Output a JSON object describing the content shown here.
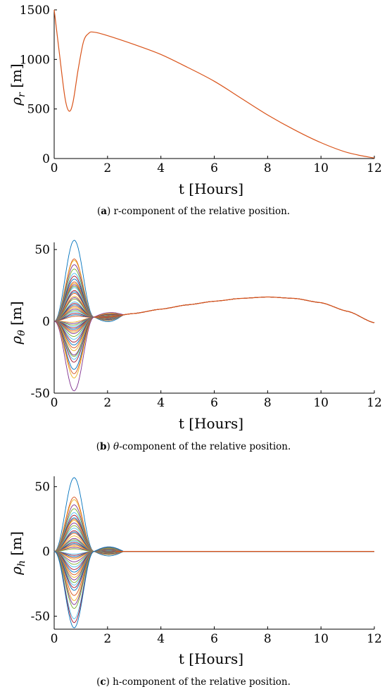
{
  "chart_data": [
    {
      "type": "line",
      "xlabel": "t [Hours]",
      "ylabel_symbol": "ρ",
      "ylabel_sub": "r",
      "ylabel_unit": "[m]",
      "xlim": [
        0,
        12
      ],
      "ylim": [
        0,
        1500
      ],
      "xticks": [
        "0",
        "2",
        "4",
        "6",
        "8",
        "10",
        "12"
      ],
      "yticks": [
        "0",
        "500",
        "1000",
        "1500"
      ],
      "series": [
        {
          "color": "#D95319",
          "x": [
            0,
            0.2,
            0.4,
            0.55,
            0.7,
            0.9,
            1.1,
            1.3,
            1.5,
            2,
            3,
            4,
            5,
            6,
            7,
            8,
            9,
            10,
            11,
            12
          ],
          "y": [
            1500,
            1050,
            620,
            480,
            560,
            900,
            1180,
            1265,
            1275,
            1240,
            1150,
            1050,
            920,
            780,
            610,
            440,
            290,
            160,
            60,
            5
          ]
        }
      ],
      "caption_label": "a",
      "caption_text": " r-component of the relative position."
    },
    {
      "type": "line",
      "xlabel": "t [Hours]",
      "ylabel_symbol": "ρ",
      "ylabel_sub": "θ",
      "ylabel_unit": "[m]",
      "xlim": [
        0,
        12
      ],
      "ylim": [
        -50,
        55
      ],
      "xticks": [
        "0",
        "2",
        "4",
        "6",
        "8",
        "10",
        "12"
      ],
      "yticks": [
        "-50",
        "0",
        "50"
      ],
      "bump_amplitudes": [
        55,
        42,
        41,
        38,
        35,
        32,
        30,
        28,
        26,
        25,
        24,
        23,
        22,
        20,
        19,
        18,
        16,
        15,
        14,
        12,
        11,
        10,
        9,
        8,
        7,
        6,
        5,
        4,
        3,
        2,
        -2,
        -3,
        -4,
        -5,
        -6,
        -7,
        -8,
        -9,
        -10,
        -12,
        -14,
        -16,
        -18,
        -20,
        -22,
        -25,
        -26,
        -28,
        -30,
        -35,
        -38,
        -41,
        -50
      ],
      "common_tail": {
        "x": [
          1.5,
          2,
          3,
          4,
          5,
          6,
          7,
          8,
          9,
          10,
          11,
          12
        ],
        "y": [
          3,
          3,
          5.5,
          8.5,
          11.5,
          14,
          16,
          17,
          16,
          13,
          7,
          -1
        ]
      },
      "colors": [
        "#0072BD",
        "#D95319",
        "#EDB120",
        "#7E2F8E",
        "#77AC30",
        "#4DBEEE",
        "#A2142F"
      ],
      "caption_label": "b",
      "caption_text": " θ-component of the relative position."
    },
    {
      "type": "line",
      "xlabel": "t [Hours]",
      "ylabel_symbol": "ρ",
      "ylabel_sub": "h",
      "ylabel_unit": "[m]",
      "xlim": [
        0,
        12
      ],
      "ylim": [
        -60,
        58
      ],
      "xticks": [
        "0",
        "2",
        "4",
        "6",
        "8",
        "10",
        "12"
      ],
      "yticks": [
        "-50",
        "0",
        "50"
      ],
      "bump_amplitudes": [
        57,
        42,
        40,
        36,
        33,
        30,
        28,
        26,
        25,
        24,
        22,
        20,
        18,
        16,
        15,
        14,
        12,
        10,
        9,
        8,
        7,
        6,
        5,
        4,
        3,
        2,
        -2,
        -3,
        -4,
        -5,
        -6,
        -8,
        -10,
        -12,
        -14,
        -16,
        -18,
        -20,
        -22,
        -24,
        -26,
        -28,
        -30,
        -34,
        -38,
        -41,
        -44,
        -52,
        -55,
        -59
      ],
      "colors": [
        "#0072BD",
        "#D95319",
        "#EDB120",
        "#7E2F8E",
        "#77AC30",
        "#4DBEEE",
        "#A2142F"
      ],
      "caption_label": "c",
      "caption_text": " h-component of the relative position."
    }
  ]
}
